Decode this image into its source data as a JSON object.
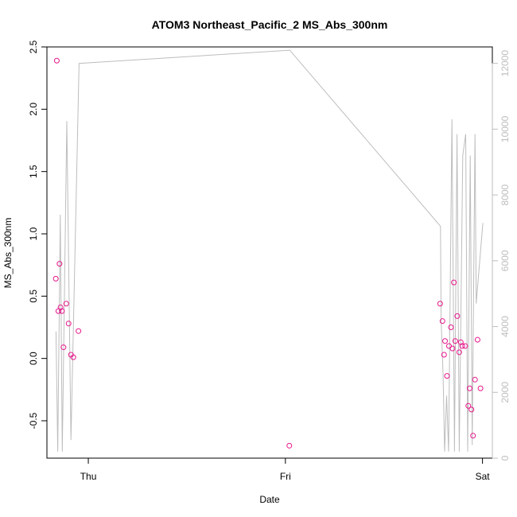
{
  "chart_data": {
    "type": "scatter",
    "title": "ATOM3 Northeast_Pacific_2 MS_Abs_300nm",
    "xlabel": "Date",
    "ylabel": "MS_Abs_300nm",
    "x_ticks": [
      {
        "t": 1.0,
        "label": "Thu"
      },
      {
        "t": 2.0,
        "label": "Fri"
      },
      {
        "t": 3.0,
        "label": "Sat"
      }
    ],
    "xlim": [
      0.79,
      3.05
    ],
    "ylim": [
      -0.8,
      2.5
    ],
    "y_ticks": [
      -0.5,
      0.0,
      0.5,
      1.0,
      1.5,
      2.0,
      2.5
    ],
    "y2_lim": [
      0,
      12500
    ],
    "y2_ticks": [
      0,
      2000,
      4000,
      6000,
      8000,
      10000,
      12000
    ],
    "colors": {
      "points": "#e8168b",
      "line": "#bdbdbd",
      "axis": "#000000",
      "right_axis": "#bdbdbd"
    },
    "series": [
      {
        "axis": "left",
        "points": [
          [
            0.835,
            0.64
          ],
          [
            0.84,
            2.39
          ],
          [
            0.848,
            0.38
          ],
          [
            0.854,
            0.76
          ],
          [
            0.859,
            0.41
          ],
          [
            0.866,
            0.38
          ],
          [
            0.874,
            0.09
          ],
          [
            0.888,
            0.44
          ],
          [
            0.9,
            0.28
          ],
          [
            0.912,
            0.03
          ],
          [
            0.924,
            0.01
          ],
          [
            0.95,
            0.22
          ],
          [
            2.02,
            -0.7
          ],
          [
            2.785,
            0.44
          ],
          [
            2.797,
            0.3
          ],
          [
            2.805,
            0.03
          ],
          [
            2.81,
            0.14
          ],
          [
            2.82,
            -0.14
          ],
          [
            2.83,
            0.1
          ],
          [
            2.84,
            0.25
          ],
          [
            2.848,
            0.08
          ],
          [
            2.855,
            0.61
          ],
          [
            2.862,
            0.14
          ],
          [
            2.872,
            0.34
          ],
          [
            2.882,
            0.05
          ],
          [
            2.89,
            0.13
          ],
          [
            2.897,
            0.1
          ],
          [
            2.912,
            0.1
          ],
          [
            2.928,
            -0.38
          ],
          [
            2.935,
            -0.24
          ],
          [
            2.944,
            -0.41
          ],
          [
            2.952,
            -0.62
          ],
          [
            2.962,
            -0.17
          ],
          [
            2.975,
            0.15
          ],
          [
            2.99,
            -0.24
          ]
        ]
      },
      {
        "axis": "right",
        "points": [
          [
            0.836,
            3850
          ],
          [
            0.845,
            200
          ],
          [
            0.858,
            7400
          ],
          [
            0.868,
            200
          ],
          [
            0.891,
            10250
          ],
          [
            0.912,
            550
          ],
          [
            0.953,
            12000
          ],
          [
            2.022,
            12400
          ],
          [
            2.787,
            7050
          ],
          [
            2.79,
            4200
          ],
          [
            2.8,
            2500
          ],
          [
            2.808,
            200
          ],
          [
            2.818,
            1900
          ],
          [
            2.828,
            200
          ],
          [
            2.845,
            10300
          ],
          [
            2.858,
            200
          ],
          [
            2.871,
            9850
          ],
          [
            2.882,
            200
          ],
          [
            2.9,
            9200
          ],
          [
            2.915,
            9850
          ],
          [
            2.925,
            200
          ],
          [
            2.938,
            9200
          ],
          [
            2.948,
            400
          ],
          [
            2.962,
            9850
          ],
          [
            2.968,
            4700
          ],
          [
            3.002,
            7150
          ]
        ]
      }
    ]
  }
}
